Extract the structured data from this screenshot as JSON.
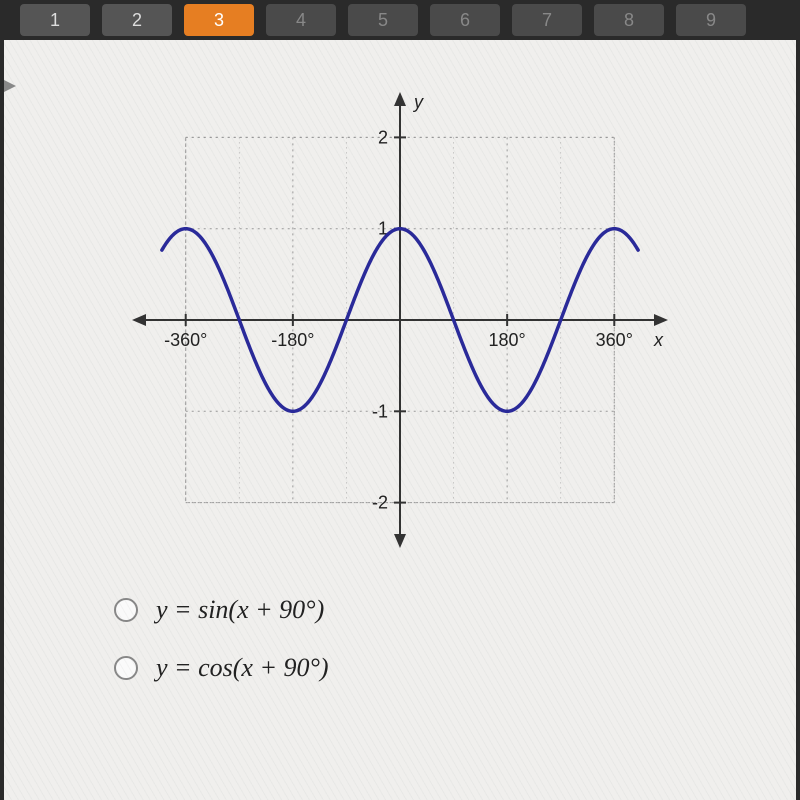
{
  "nav": {
    "tabs": [
      {
        "label": "1",
        "state": "normal"
      },
      {
        "label": "2",
        "state": "normal"
      },
      {
        "label": "3",
        "state": "active"
      },
      {
        "label": "4",
        "state": "dim"
      },
      {
        "label": "5",
        "state": "dim"
      },
      {
        "label": "6",
        "state": "dim"
      },
      {
        "label": "7",
        "state": "dim"
      },
      {
        "label": "8",
        "state": "dim"
      },
      {
        "label": "9",
        "state": "dim"
      }
    ]
  },
  "chart": {
    "type": "line",
    "function": "cos(x)",
    "xlim": [
      -420,
      420
    ],
    "ylim": [
      -2.3,
      2.3
    ],
    "xticks": [
      -360,
      -180,
      180,
      360
    ],
    "xtick_labels": [
      "-360°",
      "-180°",
      "180°",
      "360°"
    ],
    "yticks": [
      -2,
      -1,
      1,
      2
    ],
    "ytick_labels": [
      "-2",
      "-1",
      "1",
      "2"
    ],
    "xlabel": "x",
    "ylabel": "y",
    "grid_major_x": [
      -360,
      -180,
      180,
      360
    ],
    "grid_major_y": [
      -2,
      -1,
      1,
      2
    ],
    "grid_minor_x": [
      -270,
      -90,
      90,
      270
    ],
    "curve_color": "#2a2a9a",
    "curve_width": 3.5,
    "axis_color": "#333333",
    "grid_color": "#999999",
    "background_color": "#f0efed",
    "tick_fontsize": 18,
    "label_fontsize": 18
  },
  "answers": {
    "options": [
      {
        "text": "y = sin(x + 90°)"
      },
      {
        "text": "y = cos(x + 90°)"
      }
    ]
  }
}
